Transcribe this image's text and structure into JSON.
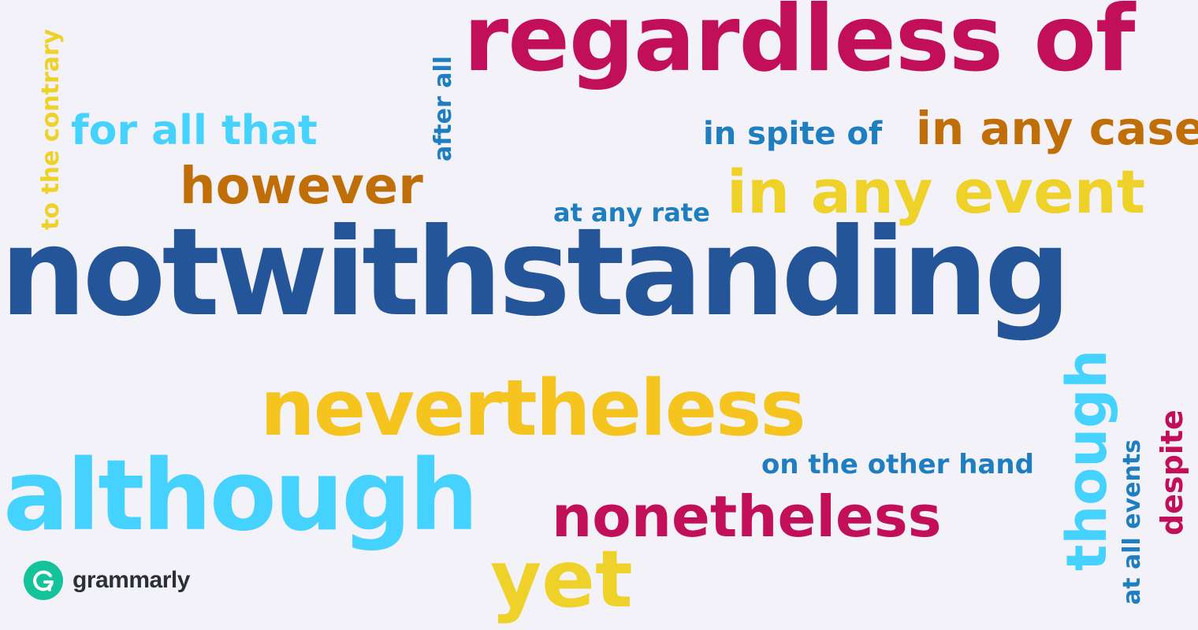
{
  "words": {
    "regardless_of": "regardless of",
    "for_all_that": "for all that",
    "however": "however",
    "in_spite_of": "in spite of",
    "in_any_case": "in any case",
    "at_any_rate": "at any rate",
    "in_any_event": "in any event",
    "notwithstanding": "notwithstanding",
    "nevertheless": "nevertheless",
    "on_the_other_hand": "on the other hand",
    "although": "although",
    "nonetheless": "nonetheless",
    "yet": "yet",
    "to_the_contrary": "to the contrary",
    "after_all": "after all",
    "though": "though",
    "at_all_events": "at all events",
    "despite": "despite"
  },
  "colors": {
    "magenta": "#c20f5a",
    "navy": "#235598",
    "sky": "#46d2ff",
    "gold": "#f5c41e",
    "mustard": "#eed22a",
    "brown": "#c06e08",
    "blue": "#1f7ec0",
    "background": "#f3f2f8",
    "logo_green": "#15c39a"
  },
  "logo": {
    "icon": "grammarly-g-icon",
    "text": "grammarly"
  }
}
